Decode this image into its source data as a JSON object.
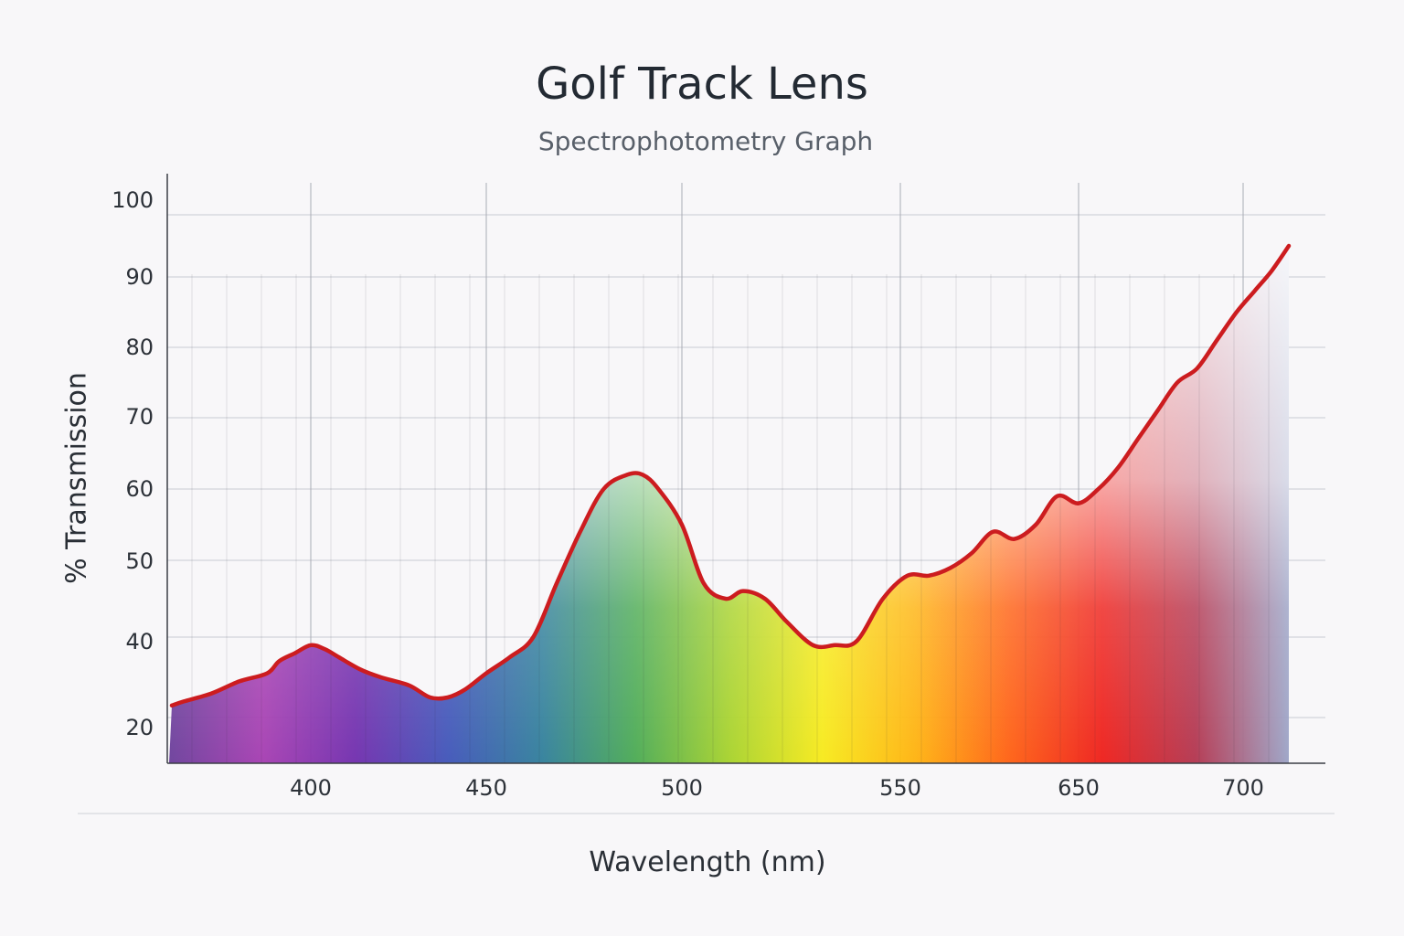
{
  "chart_data": {
    "type": "area",
    "title": "Golf Track Lens",
    "subtitle": "Spectrophotometry Graph",
    "xlabel": "Wavelength (nm)",
    "ylabel": "% Transmission",
    "x_ticks": [
      "400",
      "450",
      "500",
      "550",
      "650",
      "700"
    ],
    "y_ticks": [
      "20",
      "40",
      "50",
      "60",
      "70",
      "80",
      "90",
      "100"
    ],
    "grid": true,
    "legend": "none",
    "series": [
      {
        "line_color": "#cc1c1f",
        "points": [
          [
            365,
            23
          ],
          [
            368,
            24
          ],
          [
            375,
            26
          ],
          [
            382,
            29
          ],
          [
            389,
            31
          ],
          [
            392,
            34
          ],
          [
            396,
            36
          ],
          [
            400,
            38
          ],
          [
            404,
            37
          ],
          [
            408,
            35
          ],
          [
            414,
            32
          ],
          [
            420,
            30
          ],
          [
            428,
            28
          ],
          [
            434,
            25
          ],
          [
            439,
            25
          ],
          [
            444,
            27
          ],
          [
            450,
            31
          ],
          [
            456,
            35
          ],
          [
            462,
            40
          ],
          [
            468,
            47
          ],
          [
            474,
            54
          ],
          [
            480,
            60
          ],
          [
            486,
            62
          ],
          [
            490,
            62
          ],
          [
            494,
            60
          ],
          [
            500,
            55
          ],
          [
            505,
            47
          ],
          [
            510,
            45
          ],
          [
            514,
            46
          ],
          [
            519,
            45
          ],
          [
            524,
            42
          ],
          [
            530,
            38
          ],
          [
            535,
            38
          ],
          [
            540,
            39
          ],
          [
            546,
            45
          ],
          [
            552,
            48
          ],
          [
            558,
            48
          ],
          [
            564,
            49
          ],
          [
            570,
            51
          ],
          [
            576,
            54
          ],
          [
            582,
            53
          ],
          [
            588,
            55
          ],
          [
            594,
            59
          ],
          [
            600,
            58
          ],
          [
            606,
            60
          ],
          [
            612,
            63
          ],
          [
            618,
            67
          ],
          [
            624,
            71
          ],
          [
            630,
            75
          ],
          [
            636,
            77
          ],
          [
            642,
            81
          ],
          [
            648,
            85
          ],
          [
            654,
            88
          ],
          [
            660,
            91
          ],
          [
            666,
            95
          ]
        ]
      }
    ],
    "colors": {
      "curve": "#cc1c1f",
      "axis": "#3b3e45",
      "grid": "#c9cbd2",
      "spectrum": [
        "#6a3d9a",
        "#a53cb1",
        "#6f2cad",
        "#3e54b8",
        "#2f7e9a",
        "#4aaa52",
        "#a6d22a",
        "#f7ea17",
        "#ffb20c",
        "#ff5f10",
        "#ee1d18",
        "#b2344e",
        "#9ba3c6"
      ]
    }
  }
}
